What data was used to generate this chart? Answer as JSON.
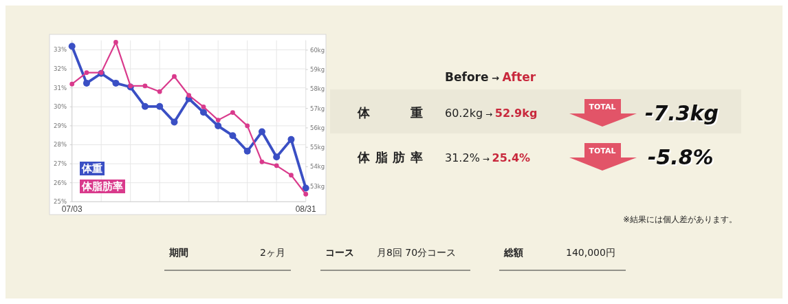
{
  "chart_data": [
    {
      "type": "line",
      "categories": [
        "07/03",
        null,
        null,
        null,
        null,
        null,
        null,
        null,
        null,
        null,
        null,
        null,
        null,
        null,
        null,
        null,
        "08/31"
      ],
      "series": [
        {
          "name": "体重",
          "color": "#3a4fc4",
          "axis": "y2",
          "values": [
            60.2,
            58.3,
            58.8,
            58.3,
            58.1,
            57.1,
            57.1,
            56.3,
            57.5,
            56.8,
            56.1,
            55.6,
            54.8,
            55.8,
            54.5,
            55.4,
            52.9
          ]
        },
        {
          "name": "体脂肪率",
          "color": "#d93a8c",
          "values": [
            31.2,
            31.8,
            31.8,
            33.4,
            31.1,
            31.1,
            30.8,
            31.6,
            30.6,
            30.0,
            29.3,
            29.7,
            29.0,
            27.1,
            26.9,
            26.4,
            25.4
          ]
        }
      ],
      "ylim": [
        25,
        33.5
      ],
      "yticks": [
        {
          "value": 25,
          "label": "25%"
        },
        {
          "value": 26,
          "label": "26%"
        },
        {
          "value": 27,
          "label": "27%"
        },
        {
          "value": 28,
          "label": "28%"
        },
        {
          "value": 29,
          "label": "29%"
        },
        {
          "value": 30,
          "label": "30%"
        },
        {
          "value": 31,
          "label": "31%"
        },
        {
          "value": 32,
          "label": "32%"
        },
        {
          "value": 33,
          "label": "33%"
        }
      ],
      "y2lim": [
        52.2,
        60.5
      ],
      "y2ticks": [
        {
          "value": 53,
          "label": "53kg"
        },
        {
          "value": 54,
          "label": "54kg"
        },
        {
          "value": 55,
          "label": "55kg"
        },
        {
          "value": 56,
          "label": "56kg"
        },
        {
          "value": 57,
          "label": "57kg"
        },
        {
          "value": 58,
          "label": "58kg"
        },
        {
          "value": 59,
          "label": "59kg"
        },
        {
          "value": 60,
          "label": "60kg"
        }
      ],
      "grid": true,
      "legend": "bottom left",
      "marker": "circle"
    },
    {
      "type": "other",
      "annotations": [
        "Before",
        "→",
        "After",
        "体重",
        "60.2kg",
        "→",
        "52.9kg",
        "TOTAL",
        "-7.3kg",
        "体脂肪率",
        "31.2%",
        "→",
        "25.4%",
        "TOTAL",
        "-5.8%",
        "※結果には個人差があります。",
        "期間",
        "2ヶ月",
        "コース",
        "月8回 70分コース",
        "総額",
        "140,000円"
      ]
    }
  ]
}
